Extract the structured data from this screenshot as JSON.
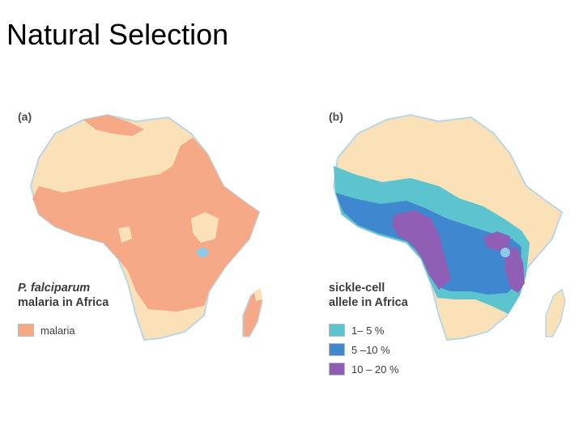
{
  "title": "Natural Selection",
  "map_a": {
    "panel_label": "(a)",
    "caption_line1": "P. falciparum",
    "caption_line2": "malaria in Africa",
    "legend": [
      {
        "label": "malaria",
        "color": "#F5A986"
      }
    ]
  },
  "map_b": {
    "panel_label": "(b)",
    "caption_line1": "sickle-cell",
    "caption_line2": "allele in Africa",
    "legend": [
      {
        "label": "1– 5 %",
        "color": "#5BC4CF"
      },
      {
        "label": "5 –10 %",
        "color": "#3F88D0"
      },
      {
        "label": "10 – 20 %",
        "color": "#8E5FB4"
      }
    ]
  },
  "colors": {
    "land": "#FBE1B8",
    "water": "#8EC9E8",
    "coast": "#B9D7E6"
  }
}
